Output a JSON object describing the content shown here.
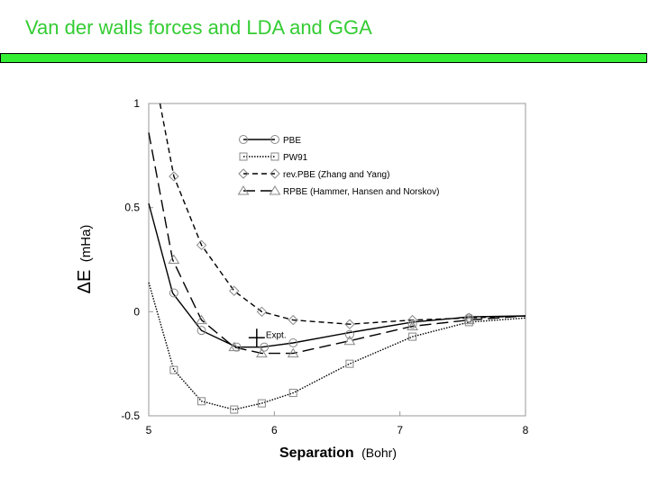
{
  "slide": {
    "title": "Van der walls forces and LDA and GGA",
    "title_color": "#33cc33",
    "bar_color": "#33ee33"
  },
  "chart_data": {
    "type": "line",
    "title": "",
    "xlabel_main": "Separation",
    "xlabel_unit": "(Bohr)",
    "ylabel_main": "ΔE",
    "ylabel_unit": "(mHa)",
    "xlim": [
      5,
      8
    ],
    "ylim": [
      -0.5,
      1
    ],
    "x_ticks": [
      5,
      6,
      7,
      8
    ],
    "y_ticks": [
      -0.5,
      0,
      0.5,
      1
    ],
    "grid": false,
    "legend": "top-center",
    "series": [
      {
        "name": "PBE",
        "marker": "circle",
        "dash": "solid",
        "x": [
          5.0,
          5.19,
          5.42,
          5.7,
          5.9,
          6.15,
          6.6,
          7.1,
          7.55,
          8.0
        ],
        "y": [
          0.52,
          0.09,
          -0.09,
          -0.17,
          -0.17,
          -0.15,
          -0.1,
          -0.05,
          -0.025,
          -0.02
        ],
        "marker_x": [
          5.2,
          5.42,
          5.7,
          5.92,
          6.15,
          6.6,
          7.1,
          7.55
        ],
        "marker_y": [
          0.09,
          -0.09,
          -0.17,
          -0.17,
          -0.15,
          -0.11,
          -0.06,
          -0.03
        ]
      },
      {
        "name": "PW91",
        "marker": "square",
        "dash": "dotted",
        "x": [
          5.0,
          5.2,
          5.42,
          5.68,
          5.9,
          6.15,
          6.6,
          7.1,
          7.55,
          8.0
        ],
        "y": [
          0.14,
          -0.28,
          -0.43,
          -0.47,
          -0.44,
          -0.39,
          -0.25,
          -0.12,
          -0.05,
          -0.03
        ],
        "marker_x": [
          5.2,
          5.42,
          5.68,
          5.9,
          6.15,
          6.6,
          7.1,
          7.55
        ],
        "marker_y": [
          -0.28,
          -0.43,
          -0.47,
          -0.44,
          -0.39,
          -0.25,
          -0.12,
          -0.05
        ]
      },
      {
        "name": "rev.PBE (Zhang and Yang)",
        "marker": "diamond",
        "dash": "short-dash",
        "x": [
          5.09,
          5.2,
          5.42,
          5.68,
          5.9,
          6.15,
          6.6,
          7.1,
          7.55,
          8.0
        ],
        "y": [
          1.0,
          0.65,
          0.32,
          0.1,
          0.0,
          -0.04,
          -0.06,
          -0.04,
          -0.03,
          -0.02
        ],
        "marker_x": [
          5.2,
          5.42,
          5.68,
          5.9,
          6.15,
          6.6,
          7.1,
          7.55
        ],
        "marker_y": [
          0.65,
          0.32,
          0.1,
          0.0,
          -0.04,
          -0.06,
          -0.04,
          -0.03
        ]
      },
      {
        "name": "RPBE (Hammer, Hansen and Norskov)",
        "marker": "triangle",
        "dash": "long-dash",
        "x": [
          5.0,
          5.19,
          5.42,
          5.68,
          5.9,
          6.15,
          6.6,
          7.1,
          7.55,
          8.0
        ],
        "y": [
          0.86,
          0.25,
          -0.04,
          -0.17,
          -0.2,
          -0.2,
          -0.14,
          -0.07,
          -0.04,
          -0.02
        ],
        "marker_x": [
          5.2,
          5.42,
          5.68,
          5.9,
          6.15,
          6.6,
          7.1,
          7.55
        ],
        "marker_y": [
          0.25,
          -0.04,
          -0.17,
          -0.2,
          -0.2,
          -0.14,
          -0.07,
          -0.04
        ]
      }
    ],
    "annotations": [
      {
        "text": "Expt.",
        "x": 5.86,
        "y": -0.125
      }
    ]
  }
}
